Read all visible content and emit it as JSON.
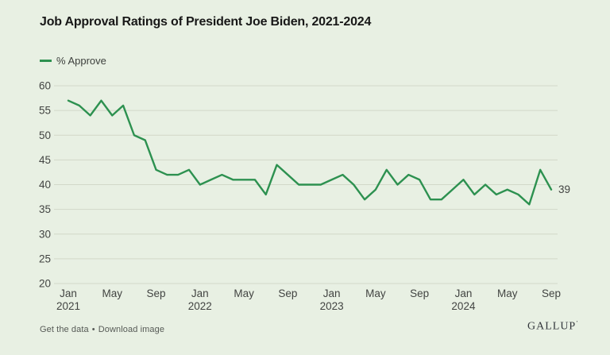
{
  "title": "Job Approval Ratings of President Joe Biden, 2021-2024",
  "legend": {
    "label": "% Approve"
  },
  "footer": {
    "get_data_label": "Get the data",
    "separator": "•",
    "download_label": "Download image",
    "brand": "GALLUP",
    "brand_mark": "ʼ"
  },
  "colors": {
    "background": "#e8f0e3",
    "line": "#2d9150",
    "grid": "#d2d8c8",
    "axis_text": "#424442",
    "title_text": "#181818",
    "footer_text": "#565a56",
    "brand_text": "#32363b"
  },
  "chart_data": {
    "type": "line",
    "title": "Job Approval Ratings of President Joe Biden, 2021-2024",
    "xlabel": "",
    "ylabel": "",
    "grid": true,
    "legend_position": "top-left",
    "ylim": [
      20,
      60
    ],
    "y_ticks": [
      20,
      25,
      30,
      35,
      40,
      45,
      50,
      55,
      60
    ],
    "x": [
      "2021-01",
      "2021-02",
      "2021-03",
      "2021-04",
      "2021-05",
      "2021-06",
      "2021-07",
      "2021-08",
      "2021-09",
      "2021-10",
      "2021-11",
      "2021-12",
      "2022-01",
      "2022-02",
      "2022-03",
      "2022-04",
      "2022-05",
      "2022-06",
      "2022-07",
      "2022-08",
      "2022-09",
      "2022-10",
      "2022-11",
      "2022-12",
      "2023-01",
      "2023-02",
      "2023-03",
      "2023-04",
      "2023-05",
      "2023-06",
      "2023-07",
      "2023-08",
      "2023-09",
      "2023-10",
      "2023-11",
      "2023-12",
      "2024-01",
      "2024-02",
      "2024-03",
      "2024-04",
      "2024-05",
      "2024-06",
      "2024-07",
      "2024-08",
      "2024-09"
    ],
    "x_ticks": [
      {
        "index": 0,
        "label": "Jan",
        "year": "2021"
      },
      {
        "index": 4,
        "label": "May"
      },
      {
        "index": 8,
        "label": "Sep"
      },
      {
        "index": 12,
        "label": "Jan",
        "year": "2022"
      },
      {
        "index": 16,
        "label": "May"
      },
      {
        "index": 20,
        "label": "Sep"
      },
      {
        "index": 24,
        "label": "Jan",
        "year": "2023"
      },
      {
        "index": 28,
        "label": "May"
      },
      {
        "index": 32,
        "label": "Sep"
      },
      {
        "index": 36,
        "label": "Jan",
        "year": "2024"
      },
      {
        "index": 40,
        "label": "May"
      },
      {
        "index": 44,
        "label": "Sep"
      }
    ],
    "series": [
      {
        "name": "% Approve",
        "color": "#2d9150",
        "values": [
          57,
          56,
          54,
          57,
          54,
          56,
          50,
          49,
          43,
          42,
          42,
          43,
          40,
          41,
          42,
          41,
          41,
          41,
          38,
          44,
          42,
          40,
          40,
          40,
          41,
          42,
          40,
          37,
          39,
          43,
          40,
          42,
          41,
          37,
          37,
          39,
          41,
          38,
          40,
          38,
          39,
          38,
          36,
          43,
          39
        ]
      }
    ],
    "end_label": "39"
  }
}
